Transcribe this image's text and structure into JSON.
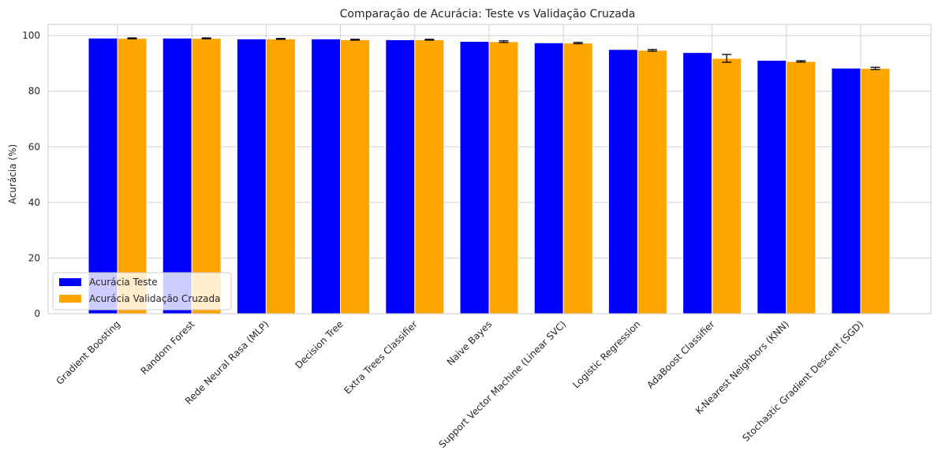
{
  "chart_data": {
    "type": "bar",
    "title": "Comparação de Acurácia: Teste vs Validação Cruzada",
    "xlabel": "",
    "ylabel": "Acurácia (%)",
    "ylim": [
      0,
      104
    ],
    "yticks": [
      0,
      20,
      40,
      60,
      80,
      100
    ],
    "grid": true,
    "legend_position": "lower-left",
    "categories": [
      "Gradient Boosting",
      "Random Forest",
      "Rede Neural Rasa (MLP)",
      "Decision Tree",
      "Extra Trees Classifier",
      "Naive Bayes",
      "Support Vector Machine (Linear SVC)",
      "Logistic Regression",
      "AdaBoost Classifier",
      "K-Nearest Neighbors (KNN)",
      "Stochastic Gradient Descent (SGD)"
    ],
    "series": [
      {
        "name": "Acurácia Teste",
        "color": "#0000ff",
        "values": [
          99.1,
          99.1,
          98.8,
          98.8,
          98.5,
          97.9,
          97.4,
          95.0,
          93.9,
          91.1,
          88.3
        ]
      },
      {
        "name": "Acurácia Validação Cruzada",
        "color": "#ffa500",
        "values": [
          99.0,
          99.0,
          98.8,
          98.5,
          98.5,
          97.8,
          97.3,
          94.7,
          91.8,
          90.7,
          88.2
        ],
        "errors": [
          0.15,
          0.15,
          0.15,
          0.15,
          0.15,
          0.3,
          0.25,
          0.3,
          1.4,
          0.25,
          0.4
        ]
      }
    ]
  }
}
